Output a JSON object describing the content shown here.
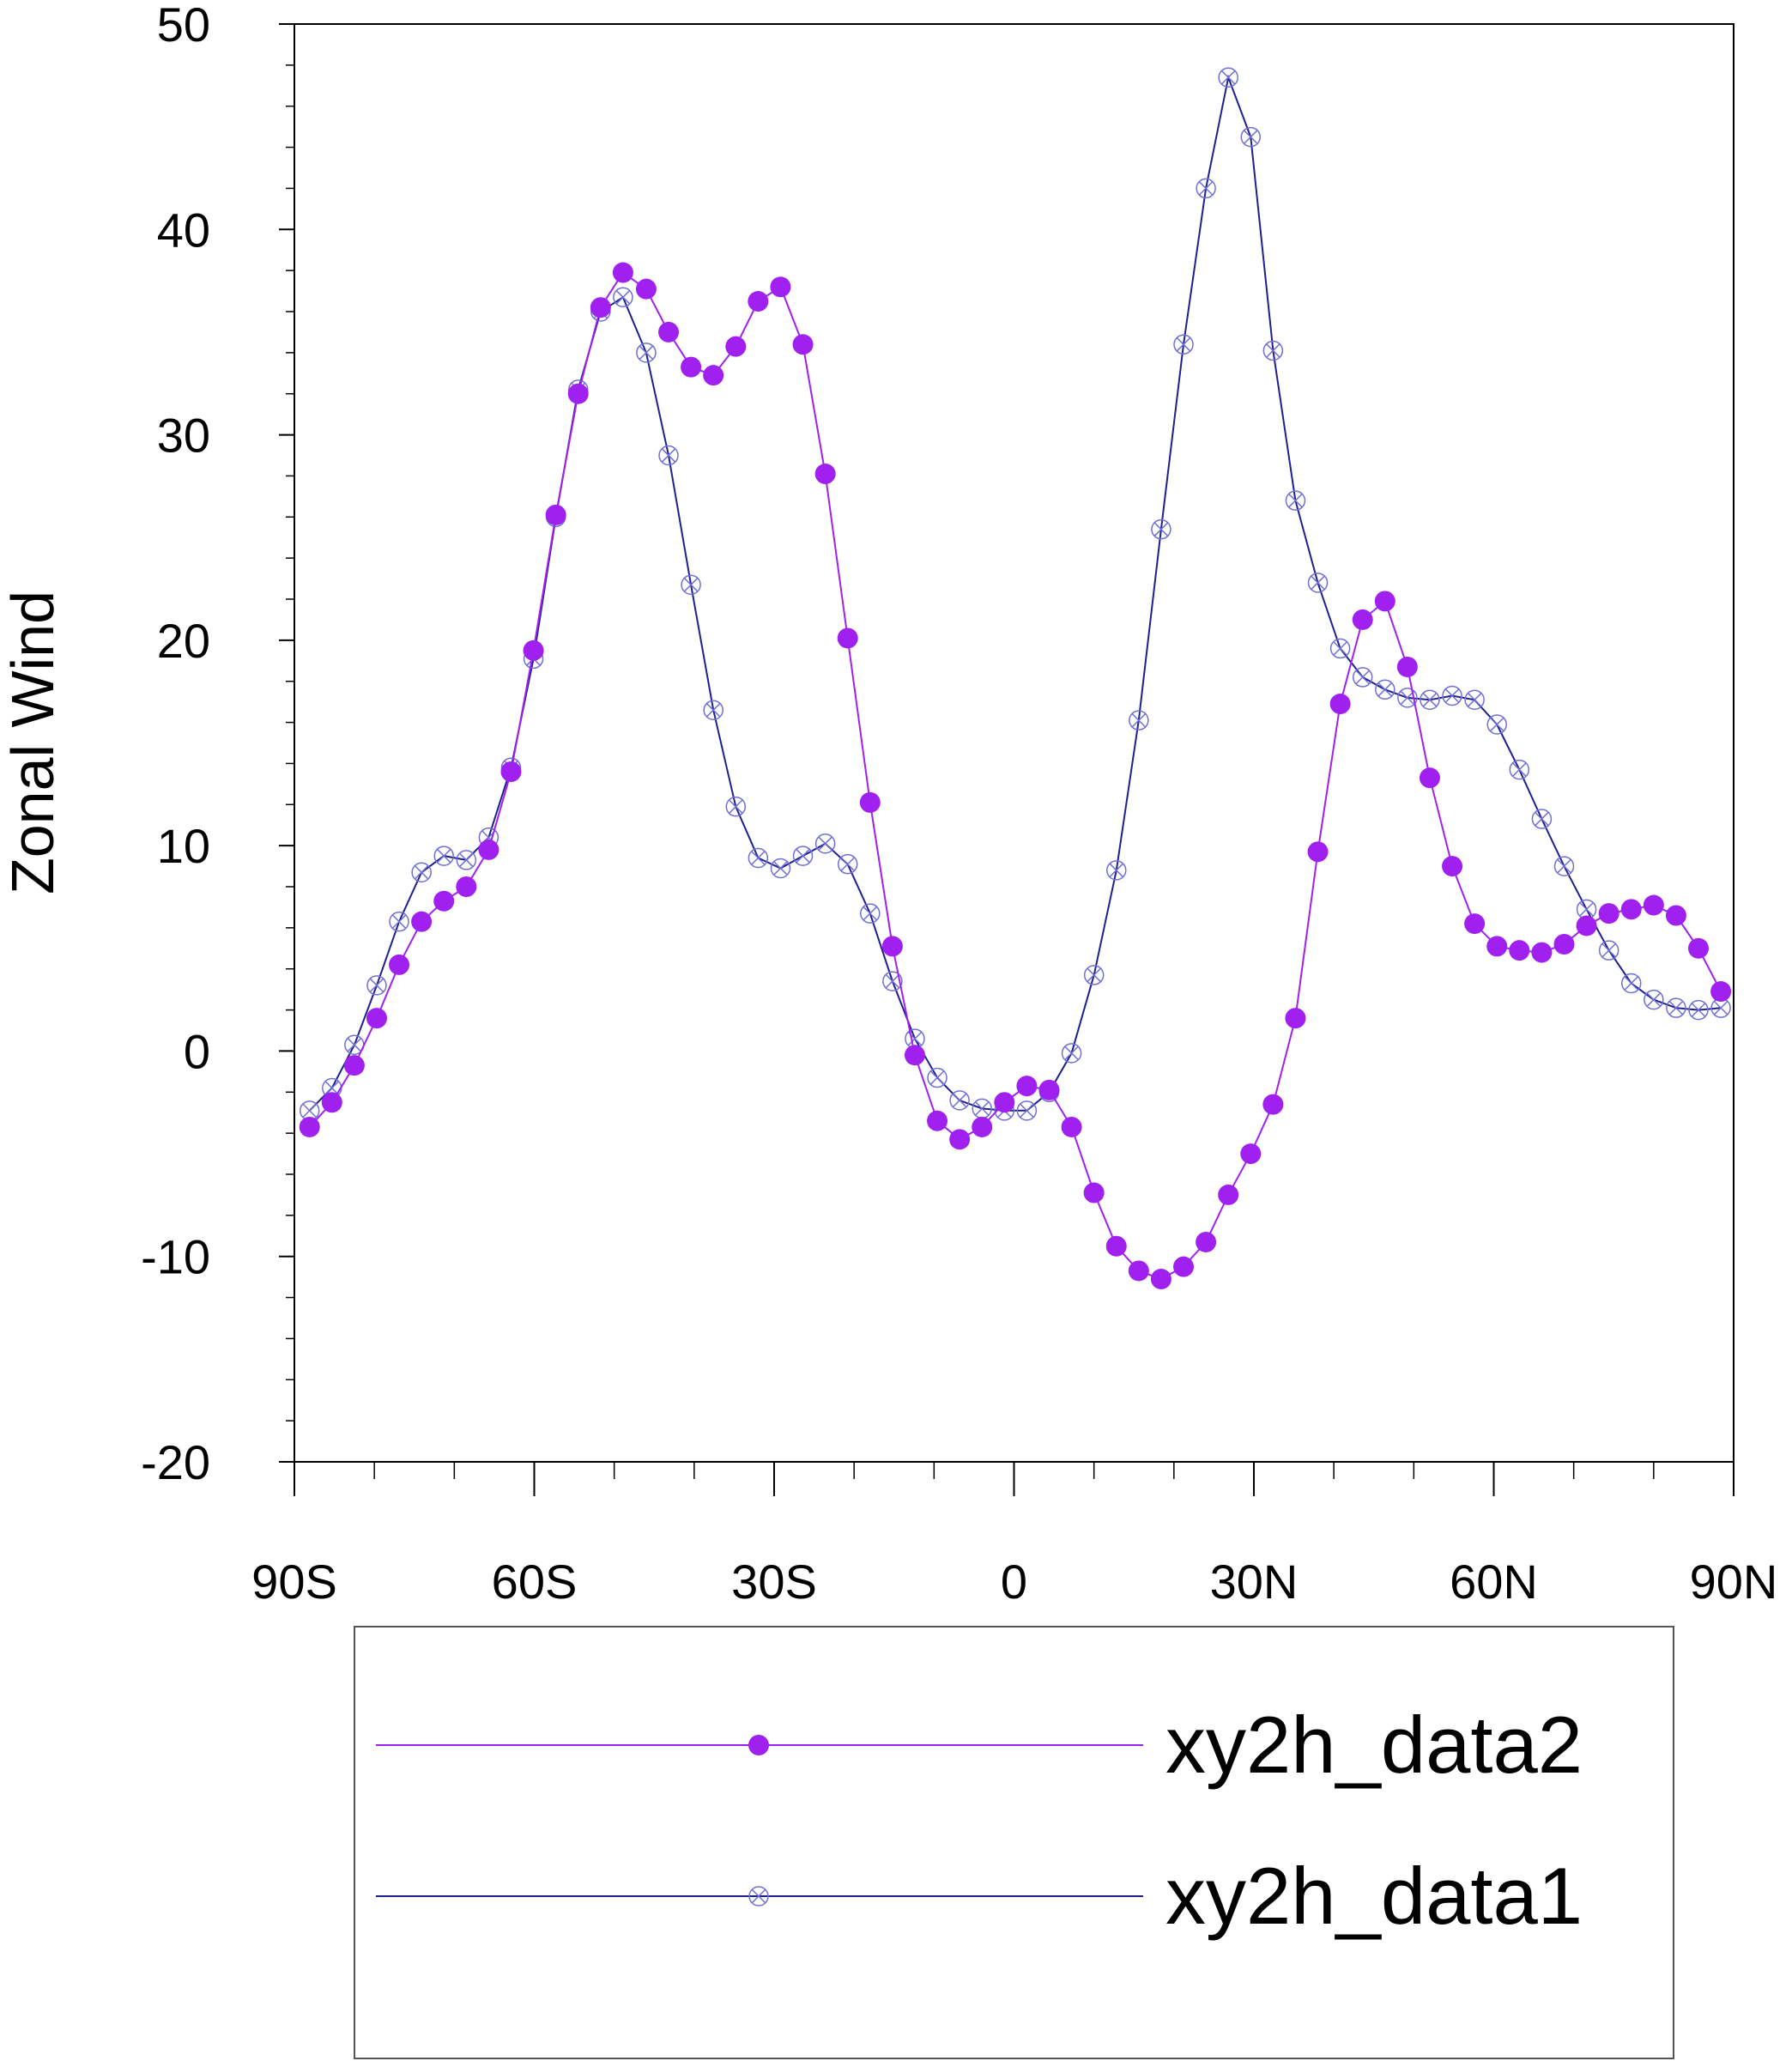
{
  "chart_data": {
    "type": "line",
    "title": "",
    "xlabel": "",
    "ylabel": "Zonal Wind",
    "xlim": [
      -90,
      90
    ],
    "ylim": [
      -20,
      50
    ],
    "xticks": [
      {
        "value": -90,
        "label": "90S"
      },
      {
        "value": -60,
        "label": "60S"
      },
      {
        "value": -30,
        "label": "30S"
      },
      {
        "value": 0,
        "label": "0"
      },
      {
        "value": 30,
        "label": "30N"
      },
      {
        "value": 60,
        "label": "60N"
      },
      {
        "value": 90,
        "label": "90N"
      }
    ],
    "yticks": [
      {
        "value": -20,
        "label": "-20"
      },
      {
        "value": -10,
        "label": "-10"
      },
      {
        "value": 0,
        "label": "0"
      },
      {
        "value": 10,
        "label": "10"
      },
      {
        "value": 20,
        "label": "20"
      },
      {
        "value": 30,
        "label": "30"
      },
      {
        "value": 40,
        "label": "40"
      },
      {
        "value": 50,
        "label": "50"
      }
    ],
    "grid": false,
    "legend": "bottom",
    "x": [
      -88.1,
      -85.3,
      -82.5,
      -79.7,
      -76.9,
      -74.1,
      -71.3,
      -68.5,
      -65.7,
      -62.9,
      -60.1,
      -57.3,
      -54.5,
      -51.7,
      -48.9,
      -46.0,
      -43.2,
      -40.4,
      -37.6,
      -34.8,
      -32.0,
      -29.2,
      -26.4,
      -23.6,
      -20.8,
      -18.0,
      -15.2,
      -12.4,
      -9.6,
      -6.8,
      -4.0,
      -1.2,
      1.6,
      4.4,
      7.2,
      10.0,
      12.8,
      15.6,
      18.4,
      21.2,
      24.0,
      26.8,
      29.6,
      32.4,
      35.2,
      38.0,
      40.8,
      43.6,
      46.4,
      49.2,
      52.0,
      54.8,
      57.6,
      60.4,
      63.2,
      66.0,
      68.8,
      71.6,
      74.4,
      77.2,
      80.0,
      82.8,
      85.6,
      88.4
    ],
    "series": [
      {
        "name": "xy2h_data2",
        "color": "#A020F0",
        "marker": "filled-circle",
        "values": [
          -3.7,
          -2.5,
          -0.7,
          1.6,
          4.2,
          6.3,
          7.3,
          8.0,
          9.8,
          13.6,
          19.5,
          26.1,
          32.0,
          36.2,
          37.9,
          37.1,
          35.0,
          33.3,
          32.9,
          34.3,
          36.5,
          37.2,
          34.4,
          28.1,
          20.1,
          12.1,
          5.1,
          -0.2,
          -3.4,
          -4.3,
          -3.7,
          -2.5,
          -1.7,
          -1.9,
          -3.7,
          -6.9,
          -9.5,
          -10.7,
          -11.1,
          -10.5,
          -9.3,
          -7.0,
          -5.0,
          -2.6,
          1.6,
          9.7,
          16.9,
          21.0,
          21.9,
          18.7,
          13.3,
          9.0,
          6.2,
          5.1,
          4.9,
          4.8,
          5.2,
          6.1,
          6.7,
          6.9,
          7.1,
          6.6,
          5.0,
          2.9
        ]
      },
      {
        "name": "xy2h_data1",
        "color": "#1F1F8F",
        "marker": "circled-x",
        "values": [
          -2.9,
          -1.8,
          0.3,
          3.2,
          6.3,
          8.7,
          9.5,
          9.3,
          10.4,
          13.8,
          19.1,
          26.0,
          32.2,
          36.0,
          36.7,
          34.0,
          29.0,
          22.7,
          16.6,
          11.9,
          9.4,
          8.9,
          9.5,
          10.1,
          9.1,
          6.7,
          3.4,
          0.6,
          -1.3,
          -2.4,
          -2.8,
          -2.9,
          -2.9,
          -2.0,
          -0.1,
          3.7,
          8.8,
          16.1,
          25.4,
          34.4,
          42.0,
          47.4,
          44.5,
          34.1,
          26.8,
          22.8,
          19.6,
          18.2,
          17.6,
          17.2,
          17.1,
          17.3,
          17.1,
          15.9,
          13.7,
          11.3,
          9.0,
          6.9,
          4.9,
          3.3,
          2.5,
          2.1,
          2.0,
          2.1
        ]
      }
    ]
  }
}
